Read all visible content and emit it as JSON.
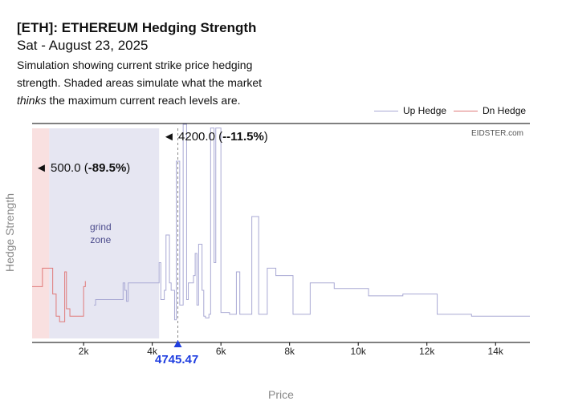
{
  "header": {
    "title": "[ETH]: ETHEREUM Hedging Strength",
    "date": "Sat - August 23, 2025",
    "desc_1": "Simulation showing current strike price hedging strength. Shaded areas simulate what the market ",
    "desc_em": "thinks",
    "desc_2": " the maximum current reach levels are."
  },
  "watermark": "EIDSTER.com",
  "annotations": {
    "upper_arrow": "◄",
    "upper_price": "4200.0",
    "upper_pct": "-11.5%",
    "lower_arrow": "◄",
    "lower_price": "500.0",
    "lower_pct": "-89.5%",
    "grind_line1": "grind",
    "grind_line2": "zone",
    "current_price": "4745.47",
    "current_marker": "▲"
  },
  "colors": {
    "up_hedge": "#a9a9d4",
    "dn_hedge": "#e07a7a",
    "grind_shade": "#e6e6f2",
    "dn_shade": "#f9e0e0",
    "current": "#1f3ee0"
  },
  "chart_data": {
    "type": "line",
    "title": "[ETH]: ETHEREUM Hedging Strength",
    "xlabel": "Price",
    "ylabel": "Hedge Strength",
    "xlim": [
      500,
      15000
    ],
    "ylim": [
      0,
      100
    ],
    "xticks": [
      2000,
      4000,
      6000,
      8000,
      10000,
      12000,
      14000
    ],
    "xtick_labels": [
      "2k",
      "4k",
      "6k",
      "8k",
      "10k",
      "12k",
      "14k"
    ],
    "legend": {
      "placement": "top-right",
      "entries": [
        "Up Hedge",
        "Dn Hedge"
      ]
    },
    "current_price": 4745.47,
    "shaded_regions": [
      {
        "name": "dn-zone",
        "from": 500,
        "to": 1000
      },
      {
        "name": "grind-zone",
        "from": 1000,
        "to": 4200
      }
    ],
    "series": [
      {
        "name": "Up Hedge",
        "steps": [
          [
            2300,
            12
          ],
          [
            2350,
            15
          ],
          [
            2450,
            15
          ],
          [
            3150,
            24
          ],
          [
            3200,
            20
          ],
          [
            3250,
            14
          ],
          [
            3300,
            24
          ],
          [
            4200,
            35
          ],
          [
            4250,
            15
          ],
          [
            4350,
            20
          ],
          [
            4400,
            50
          ],
          [
            4500,
            24
          ],
          [
            4550,
            20
          ],
          [
            4650,
            4
          ],
          [
            4700,
            90
          ],
          [
            4800,
            12
          ],
          [
            4900,
            110
          ],
          [
            5000,
            15
          ],
          [
            5050,
            24
          ],
          [
            5200,
            28
          ],
          [
            5250,
            40
          ],
          [
            5300,
            12
          ],
          [
            5350,
            45
          ],
          [
            5450,
            20
          ],
          [
            5500,
            6
          ],
          [
            5550,
            5
          ],
          [
            5650,
            7
          ],
          [
            5700,
            108
          ],
          [
            5800,
            35
          ],
          [
            5850,
            108
          ],
          [
            6000,
            8
          ],
          [
            6250,
            7
          ],
          [
            6450,
            30
          ],
          [
            6550,
            7
          ],
          [
            6900,
            60
          ],
          [
            7100,
            7
          ],
          [
            7350,
            32
          ],
          [
            7600,
            28
          ],
          [
            8100,
            7
          ],
          [
            8600,
            24
          ],
          [
            9300,
            21
          ],
          [
            10300,
            17
          ],
          [
            11300,
            18
          ],
          [
            12300,
            7
          ],
          [
            13300,
            6
          ],
          [
            15000,
            6
          ]
        ]
      },
      {
        "name": "Dn Hedge",
        "steps": [
          [
            500,
            22
          ],
          [
            800,
            32
          ],
          [
            1100,
            18
          ],
          [
            1200,
            6
          ],
          [
            1300,
            3
          ],
          [
            1450,
            30
          ],
          [
            1500,
            10
          ],
          [
            1600,
            6
          ],
          [
            1650,
            6
          ],
          [
            2000,
            22
          ],
          [
            2050,
            25
          ]
        ]
      }
    ]
  }
}
